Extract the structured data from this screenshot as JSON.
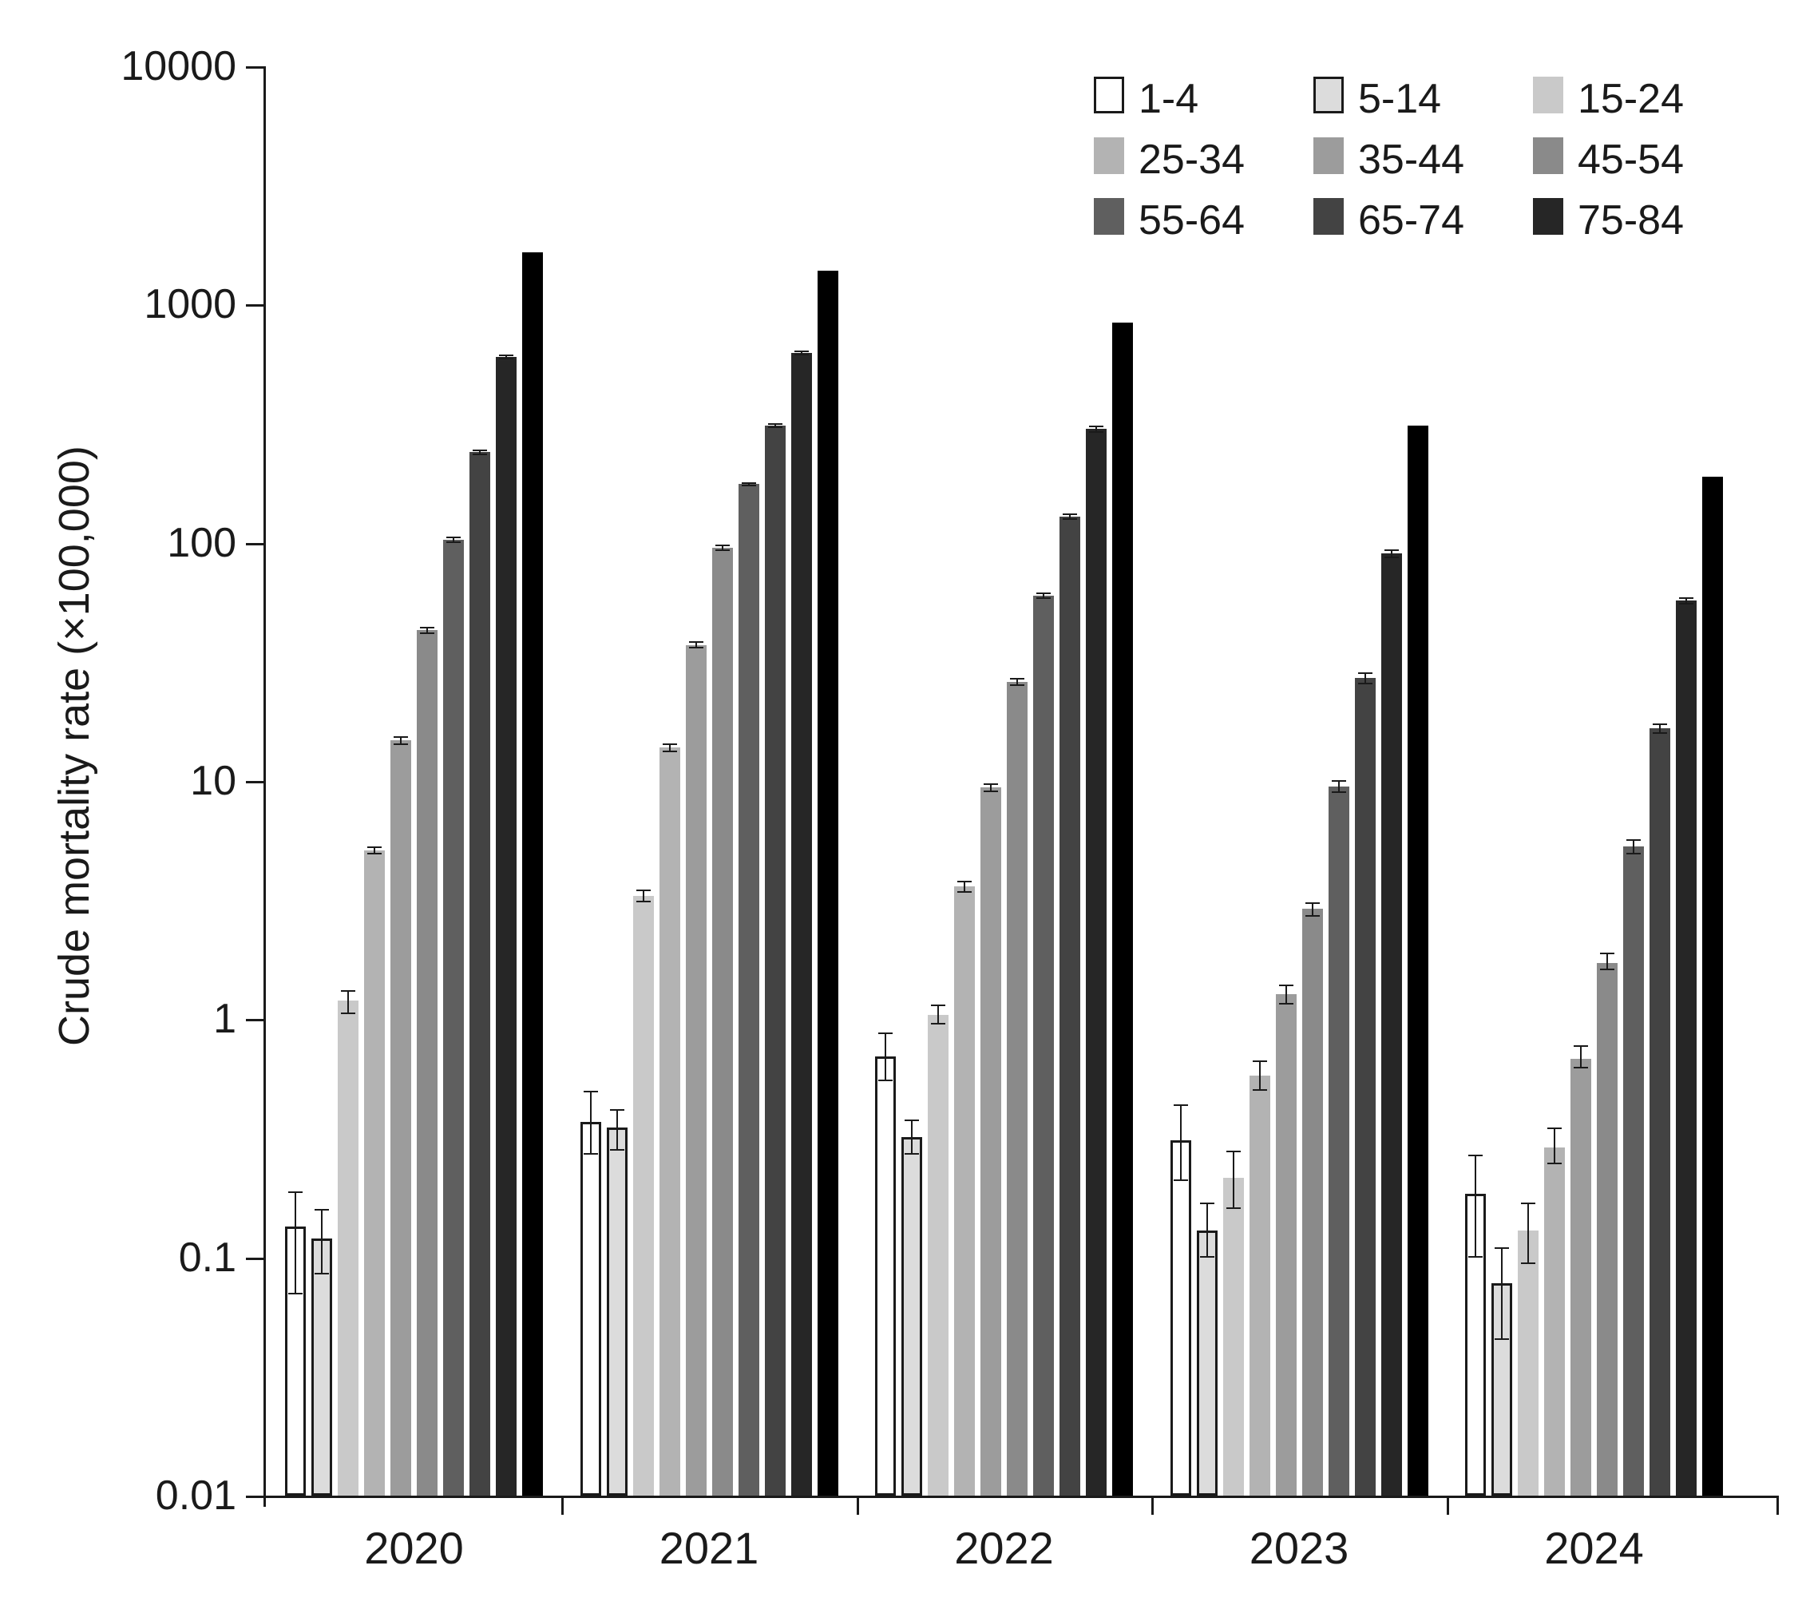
{
  "chart_data": {
    "type": "bar",
    "title": "",
    "xlabel": "",
    "ylabel": "Crude mortality rate (×100,000)",
    "yscale": "log",
    "ylim": [
      0.01,
      10000
    ],
    "grid": false,
    "legend_position": "top-right",
    "ytick_labels": [
      "10000",
      "1000",
      "100",
      "10",
      "1",
      "0.1",
      "0.01"
    ],
    "ytick_values": [
      10000,
      1000,
      100,
      10,
      1,
      0.1,
      0.01
    ],
    "categories": [
      "2020",
      "2021",
      "2022",
      "2023",
      "2024"
    ],
    "series": [
      {
        "label": "1-4",
        "fill": "#ffffff",
        "outline": "#1a1a1a",
        "values": [
          0.135,
          0.37,
          0.7,
          0.31,
          0.185
        ],
        "errors": [
          [
            0.07,
            0.19
          ],
          [
            0.27,
            0.5
          ],
          [
            0.55,
            0.88
          ],
          [
            0.21,
            0.44
          ],
          [
            0.1,
            0.27
          ]
        ]
      },
      {
        "label": "5-14",
        "fill": "#dcdcdc",
        "outline": "#1a1a1a",
        "values": [
          0.12,
          0.35,
          0.32,
          0.13,
          0.078
        ],
        "errors": [
          [
            0.085,
            0.16
          ],
          [
            0.28,
            0.42
          ],
          [
            0.27,
            0.38
          ],
          [
            0.1,
            0.17
          ],
          [
            0.045,
            0.11
          ]
        ]
      },
      {
        "label": "15-24",
        "fill": "#c9c9c9",
        "outline": null,
        "values": [
          1.2,
          3.3,
          1.04,
          0.215,
          0.13
        ],
        "errors": [
          [
            1.05,
            1.32
          ],
          [
            3.1,
            3.5
          ],
          [
            0.95,
            1.15
          ],
          [
            0.16,
            0.28
          ],
          [
            0.094,
            0.17
          ]
        ]
      },
      {
        "label": "25-34",
        "fill": "#b3b3b3",
        "outline": null,
        "values": [
          5.1,
          13.8,
          3.6,
          0.58,
          0.29
        ],
        "errors": [
          [
            4.9,
            5.3
          ],
          [
            13.2,
            14.4
          ],
          [
            3.4,
            3.8
          ],
          [
            0.5,
            0.67
          ],
          [
            0.247,
            0.35
          ]
        ]
      },
      {
        "label": "35-44",
        "fill": "#9c9c9c",
        "outline": null,
        "values": [
          14.8,
          37,
          9.4,
          1.27,
          0.68
        ],
        "errors": [
          [
            14.2,
            15.4
          ],
          [
            36,
            38.5
          ],
          [
            9.0,
            9.8
          ],
          [
            1.15,
            1.4
          ],
          [
            0.62,
            0.78
          ]
        ]
      },
      {
        "label": "45-54",
        "fill": "#8a8a8a",
        "outline": null,
        "values": [
          43,
          95,
          26,
          2.9,
          1.72
        ],
        "errors": [
          [
            41.5,
            44.5
          ],
          [
            92,
            98
          ],
          [
            25,
            27
          ],
          [
            2.7,
            3.1
          ],
          [
            1.6,
            1.9
          ]
        ]
      },
      {
        "label": "55-64",
        "fill": "#5f5f5f",
        "outline": null,
        "values": [
          103,
          176,
          60,
          9.5,
          5.3
        ],
        "errors": [
          [
            100,
            106
          ],
          [
            172,
            180
          ],
          [
            58,
            62
          ],
          [
            8.9,
            10.1
          ],
          [
            4.9,
            5.7
          ]
        ]
      },
      {
        "label": "65-74",
        "fill": "#434343",
        "outline": null,
        "values": [
          240,
          311,
          129,
          27,
          16.6
        ],
        "errors": [
          [
            234,
            246
          ],
          [
            304,
            318
          ],
          [
            125,
            133
          ],
          [
            25.5,
            28.5
          ],
          [
            15.8,
            17.4
          ]
        ]
      },
      {
        "label": "75-84",
        "fill": "#262626",
        "outline": null,
        "values": [
          603,
          627,
          300,
          90,
          57
        ],
        "errors": [
          [
            590,
            616
          ],
          [
            612,
            642
          ],
          [
            290,
            310
          ],
          [
            86,
            94
          ],
          [
            55,
            59
          ]
        ]
      },
      {
        "label": "",
        "fill": "#000000",
        "outline": null,
        "values": [
          1660,
          1390,
          838,
          311,
          190
        ],
        "errors": [
          null,
          null,
          null,
          null,
          null
        ]
      }
    ],
    "legend_entries": [
      "1-4",
      "5-14",
      "15-24",
      "25-34",
      "35-44",
      "45-54",
      "55-64",
      "65-74",
      "75-84"
    ]
  }
}
